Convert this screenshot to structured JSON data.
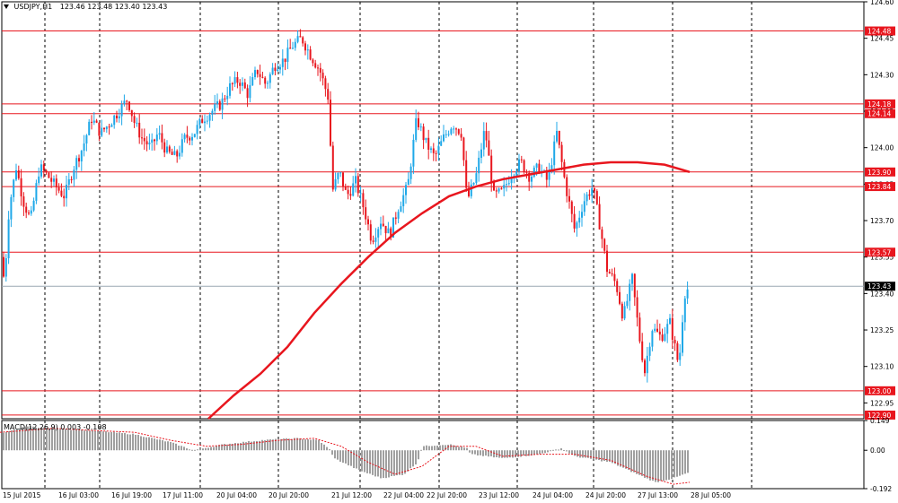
{
  "header": {
    "symbol": "USDJPY,H1",
    "ohlc": "123.46 123.48 123.40 123.43"
  },
  "colors": {
    "bull": "#1fa8e8",
    "bear": "#e8161e",
    "ma": "#e8161e",
    "hline": "#e8161e",
    "current": "#9aa7b4",
    "grid": "#000000",
    "macd_hist": "#a0a0a0",
    "signal": "#e8161e"
  },
  "chart_data": [
    {
      "type": "candlestick",
      "title": "USDJPY,H1",
      "ylim": [
        122.885,
        124.6
      ],
      "ticks": [
        "124.60",
        "124.45",
        "124.30",
        "124.15",
        "124.00",
        "123.85",
        "123.70",
        "123.55",
        "123.40",
        "123.25",
        "123.10",
        "122.95"
      ],
      "x_labels": [
        "15 Jul 2015",
        "16 Jul 03:00",
        "16 Jul 19:00",
        "17 Jul 11:00",
        "20 Jul 04:00",
        "20 Jul 20:00",
        "21 Jul 12:00",
        "22 Jul 04:00",
        "22 Jul 20:00",
        "23 Jul 12:00",
        "24 Jul 04:00",
        "24 Jul 20:00",
        "27 Jul 13:00",
        "28 Jul 05:00"
      ],
      "horizontal_lines": [
        124.48,
        124.18,
        124.14,
        123.9,
        123.84,
        123.57,
        123.0,
        122.9
      ],
      "current_price": 123.43,
      "current_label": "123.43",
      "price_path": [
        [
          0,
          123.55
        ],
        [
          5,
          123.45
        ],
        [
          10,
          123.75
        ],
        [
          18,
          123.92
        ],
        [
          26,
          123.78
        ],
        [
          34,
          123.7
        ],
        [
          44,
          123.92
        ],
        [
          54,
          123.88
        ],
        [
          62,
          123.84
        ],
        [
          72,
          123.8
        ],
        [
          82,
          123.92
        ],
        [
          92,
          124.0
        ],
        [
          102,
          124.12
        ],
        [
          112,
          124.06
        ],
        [
          122,
          124.1
        ],
        [
          132,
          124.15
        ],
        [
          142,
          124.2
        ],
        [
          150,
          124.1
        ],
        [
          158,
          124.04
        ],
        [
          168,
          124.0
        ],
        [
          176,
          124.06
        ],
        [
          186,
          123.98
        ],
        [
          196,
          123.96
        ],
        [
          206,
          124.04
        ],
        [
          216,
          124.06
        ],
        [
          226,
          124.12
        ],
        [
          236,
          124.15
        ],
        [
          246,
          124.18
        ],
        [
          256,
          124.25
        ],
        [
          266,
          124.28
        ],
        [
          276,
          124.22
        ],
        [
          286,
          124.32
        ],
        [
          296,
          124.26
        ],
        [
          306,
          124.34
        ],
        [
          316,
          124.36
        ],
        [
          326,
          124.42
        ],
        [
          336,
          124.45
        ],
        [
          346,
          124.38
        ],
        [
          356,
          124.32
        ],
        [
          366,
          124.2
        ],
        [
          370,
          123.82
        ],
        [
          378,
          123.9
        ],
        [
          386,
          123.8
        ],
        [
          396,
          123.86
        ],
        [
          406,
          123.74
        ],
        [
          414,
          123.62
        ],
        [
          424,
          123.7
        ],
        [
          434,
          123.64
        ],
        [
          444,
          123.76
        ],
        [
          454,
          123.84
        ],
        [
          464,
          124.12
        ],
        [
          474,
          124.02
        ],
        [
          484,
          123.96
        ],
        [
          494,
          124.04
        ],
        [
          504,
          124.1
        ],
        [
          514,
          124.06
        ],
        [
          520,
          123.78
        ],
        [
          530,
          123.88
        ],
        [
          540,
          124.08
        ],
        [
          550,
          123.8
        ],
        [
          560,
          123.82
        ],
        [
          570,
          123.9
        ],
        [
          580,
          123.94
        ],
        [
          590,
          123.88
        ],
        [
          600,
          123.92
        ],
        [
          610,
          123.86
        ],
        [
          620,
          124.06
        ],
        [
          630,
          123.84
        ],
        [
          640,
          123.66
        ],
        [
          650,
          123.78
        ],
        [
          660,
          123.84
        ],
        [
          668,
          123.68
        ],
        [
          676,
          123.5
        ],
        [
          686,
          123.44
        ],
        [
          694,
          123.3
        ],
        [
          704,
          123.46
        ],
        [
          712,
          123.22
        ],
        [
          718,
          123.08
        ],
        [
          726,
          123.26
        ],
        [
          736,
          123.22
        ],
        [
          746,
          123.28
        ],
        [
          756,
          123.1
        ],
        [
          762,
          123.4
        ],
        [
          768,
          123.43
        ]
      ],
      "ma": [
        [
          232,
          122.885
        ],
        [
          260,
          122.98
        ],
        [
          290,
          123.07
        ],
        [
          320,
          123.18
        ],
        [
          350,
          123.32
        ],
        [
          380,
          123.44
        ],
        [
          410,
          123.55
        ],
        [
          440,
          123.65
        ],
        [
          470,
          123.73
        ],
        [
          500,
          123.8
        ],
        [
          530,
          123.84
        ],
        [
          560,
          123.87
        ],
        [
          590,
          123.89
        ],
        [
          620,
          123.91
        ],
        [
          650,
          123.93
        ],
        [
          680,
          123.94
        ],
        [
          710,
          123.94
        ],
        [
          740,
          123.93
        ],
        [
          768,
          123.9
        ]
      ]
    },
    {
      "type": "bar",
      "title": "MACD",
      "label": "MACD(12,26,9) 0.003 -0.108",
      "ylim": [
        -0.192,
        0.149
      ],
      "ticks": [
        "0.149",
        "0.00",
        "-0.192"
      ],
      "histogram_path": [
        [
          0,
          0.08
        ],
        [
          30,
          0.12
        ],
        [
          60,
          0.11
        ],
        [
          100,
          0.1
        ],
        [
          150,
          0.08
        ],
        [
          190,
          0.04
        ],
        [
          215,
          0.0
        ],
        [
          250,
          0.03
        ],
        [
          290,
          0.05
        ],
        [
          330,
          0.06
        ],
        [
          355,
          0.05
        ],
        [
          368,
          0.0
        ],
        [
          372,
          -0.04
        ],
        [
          400,
          -0.1
        ],
        [
          425,
          -0.14
        ],
        [
          450,
          -0.12
        ],
        [
          465,
          -0.06
        ],
        [
          470,
          0.02
        ],
        [
          500,
          0.03
        ],
        [
          520,
          0.01
        ],
        [
          524,
          -0.02
        ],
        [
          560,
          -0.04
        ],
        [
          600,
          -0.02
        ],
        [
          625,
          0.01
        ],
        [
          640,
          -0.03
        ],
        [
          680,
          -0.06
        ],
        [
          710,
          -0.12
        ],
        [
          730,
          -0.16
        ],
        [
          750,
          -0.14
        ],
        [
          768,
          -0.11
        ]
      ],
      "signal_path": [
        [
          0,
          0.09
        ],
        [
          30,
          0.1
        ],
        [
          60,
          0.11
        ],
        [
          100,
          0.1
        ],
        [
          150,
          0.09
        ],
        [
          190,
          0.05
        ],
        [
          230,
          0.02
        ],
        [
          270,
          0.03
        ],
        [
          310,
          0.05
        ],
        [
          350,
          0.06
        ],
        [
          380,
          0.02
        ],
        [
          410,
          -0.06
        ],
        [
          440,
          -0.12
        ],
        [
          470,
          -0.08
        ],
        [
          500,
          0.02
        ],
        [
          530,
          0.02
        ],
        [
          560,
          -0.03
        ],
        [
          600,
          -0.02
        ],
        [
          640,
          -0.02
        ],
        [
          680,
          -0.05
        ],
        [
          720,
          -0.13
        ],
        [
          750,
          -0.17
        ],
        [
          768,
          -0.16
        ]
      ]
    }
  ]
}
